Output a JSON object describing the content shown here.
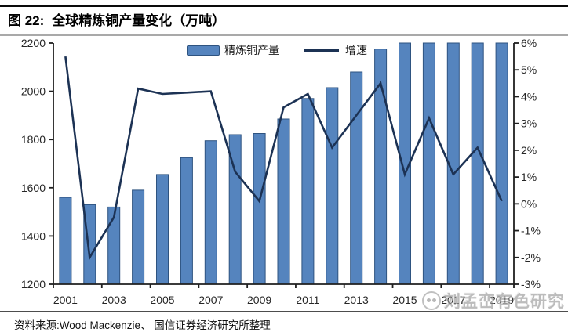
{
  "header": {
    "title_prefix": "图 22:",
    "title_text": "全球精炼铜产量变化（万吨）"
  },
  "footer": {
    "source": "资料来源:Wood Mackenzie、 国信证券经济研究所整理"
  },
  "watermark": {
    "text": "刘孟峦有色研究"
  },
  "colors": {
    "bar_fill": "#5584BE",
    "bar_stroke": "#2E5380",
    "line": "#1C3254",
    "axis": "#1f1f1f",
    "tick_text": "#262626"
  },
  "chart_data": {
    "type": "bar",
    "subtype": "bar+line combo, dual y-axis",
    "title": "全球精炼铜产量变化（万吨）",
    "categories": [
      "2001",
      "2002",
      "2003",
      "2004",
      "2005",
      "2006",
      "2007",
      "2008",
      "2009",
      "2010",
      "2011",
      "2012",
      "2013",
      "2014",
      "2015",
      "2016",
      "2017",
      "2018",
      "2019"
    ],
    "series": [
      {
        "name": "精炼铜产量",
        "type": "bar",
        "axis": "left",
        "values": [
          1560,
          1530,
          1520,
          1590,
          1655,
          1725,
          1795,
          1820,
          1825,
          1885,
          1970,
          2015,
          2080,
          2175,
          2200,
          2200,
          2200,
          2200,
          2200
        ],
        "note": "2015-2019 bars are clipped at the axis maximum 2200"
      },
      {
        "name": "增速",
        "type": "line",
        "axis": "right",
        "values_pct": [
          5.5,
          -2.0,
          -0.5,
          4.3,
          4.1,
          4.15,
          4.2,
          1.2,
          0.1,
          3.6,
          4.1,
          2.1,
          3.3,
          4.5,
          1.1,
          3.2,
          1.1,
          2.1,
          0.1
        ]
      }
    ],
    "left_axis": {
      "min": 1200,
      "max": 2200,
      "step": 200,
      "tick_labels": [
        "1200",
        "1400",
        "1600",
        "1800",
        "2000",
        "2200"
      ]
    },
    "right_axis": {
      "min": -3,
      "max": 6,
      "step": 1,
      "tick_labels": [
        "-3%",
        "-2%",
        "-1%",
        "0%",
        "1%",
        "2%",
        "3%",
        "4%",
        "5%",
        "6%"
      ]
    },
    "x_axis": {
      "tick_labels": [
        "2001",
        "2003",
        "2005",
        "2007",
        "2009",
        "2011",
        "2013",
        "2015",
        "2017",
        "2019"
      ],
      "label_every": 2
    },
    "legend": {
      "position": "top-center",
      "entries": [
        "精炼铜产量",
        "增速"
      ]
    },
    "grid": false
  }
}
